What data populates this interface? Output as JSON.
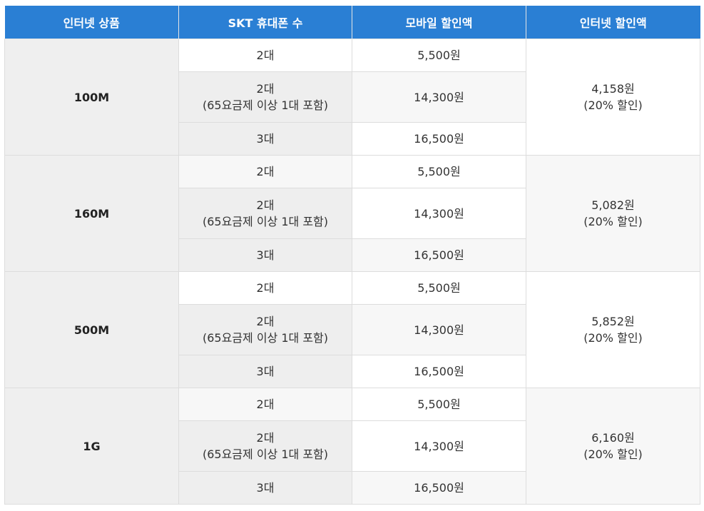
{
  "header": {
    "col1": "인터넷 상품",
    "col2": "SKT 휴대폰 수",
    "col3": "모바일 할인액",
    "col4": "인터넷 할인액"
  },
  "colors": {
    "header_bg": "#2a7fd4",
    "header_text": "#ffffff",
    "product_cell_bg": "#efefef"
  },
  "groups": [
    {
      "product": "100M",
      "rows": [
        {
          "phones": "2대",
          "phones_note": "",
          "mobile_discount": "5,500원"
        },
        {
          "phones": "2대",
          "phones_note": "(65요금제 이상 1대 포함)",
          "mobile_discount": "14,300원"
        },
        {
          "phones": "3대",
          "phones_note": "",
          "mobile_discount": "16,500원"
        }
      ],
      "internet_discount": "4,158원",
      "internet_discount_note": "(20% 할인)"
    },
    {
      "product": "160M",
      "rows": [
        {
          "phones": "2대",
          "phones_note": "",
          "mobile_discount": "5,500원"
        },
        {
          "phones": "2대",
          "phones_note": "(65요금제 이상 1대 포함)",
          "mobile_discount": "14,300원"
        },
        {
          "phones": "3대",
          "phones_note": "",
          "mobile_discount": "16,500원"
        }
      ],
      "internet_discount": "5,082원",
      "internet_discount_note": "(20% 할인)"
    },
    {
      "product": "500M",
      "rows": [
        {
          "phones": "2대",
          "phones_note": "",
          "mobile_discount": "5,500원"
        },
        {
          "phones": "2대",
          "phones_note": "(65요금제 이상 1대 포함)",
          "mobile_discount": "14,300원"
        },
        {
          "phones": "3대",
          "phones_note": "",
          "mobile_discount": "16,500원"
        }
      ],
      "internet_discount": "5,852원",
      "internet_discount_note": "(20% 할인)"
    },
    {
      "product": "1G",
      "rows": [
        {
          "phones": "2대",
          "phones_note": "",
          "mobile_discount": "5,500원"
        },
        {
          "phones": "2대",
          "phones_note": "(65요금제 이상 1대 포함)",
          "mobile_discount": "14,300원"
        },
        {
          "phones": "3대",
          "phones_note": "",
          "mobile_discount": "16,500원"
        }
      ],
      "internet_discount": "6,160원",
      "internet_discount_note": "(20% 할인)"
    }
  ]
}
